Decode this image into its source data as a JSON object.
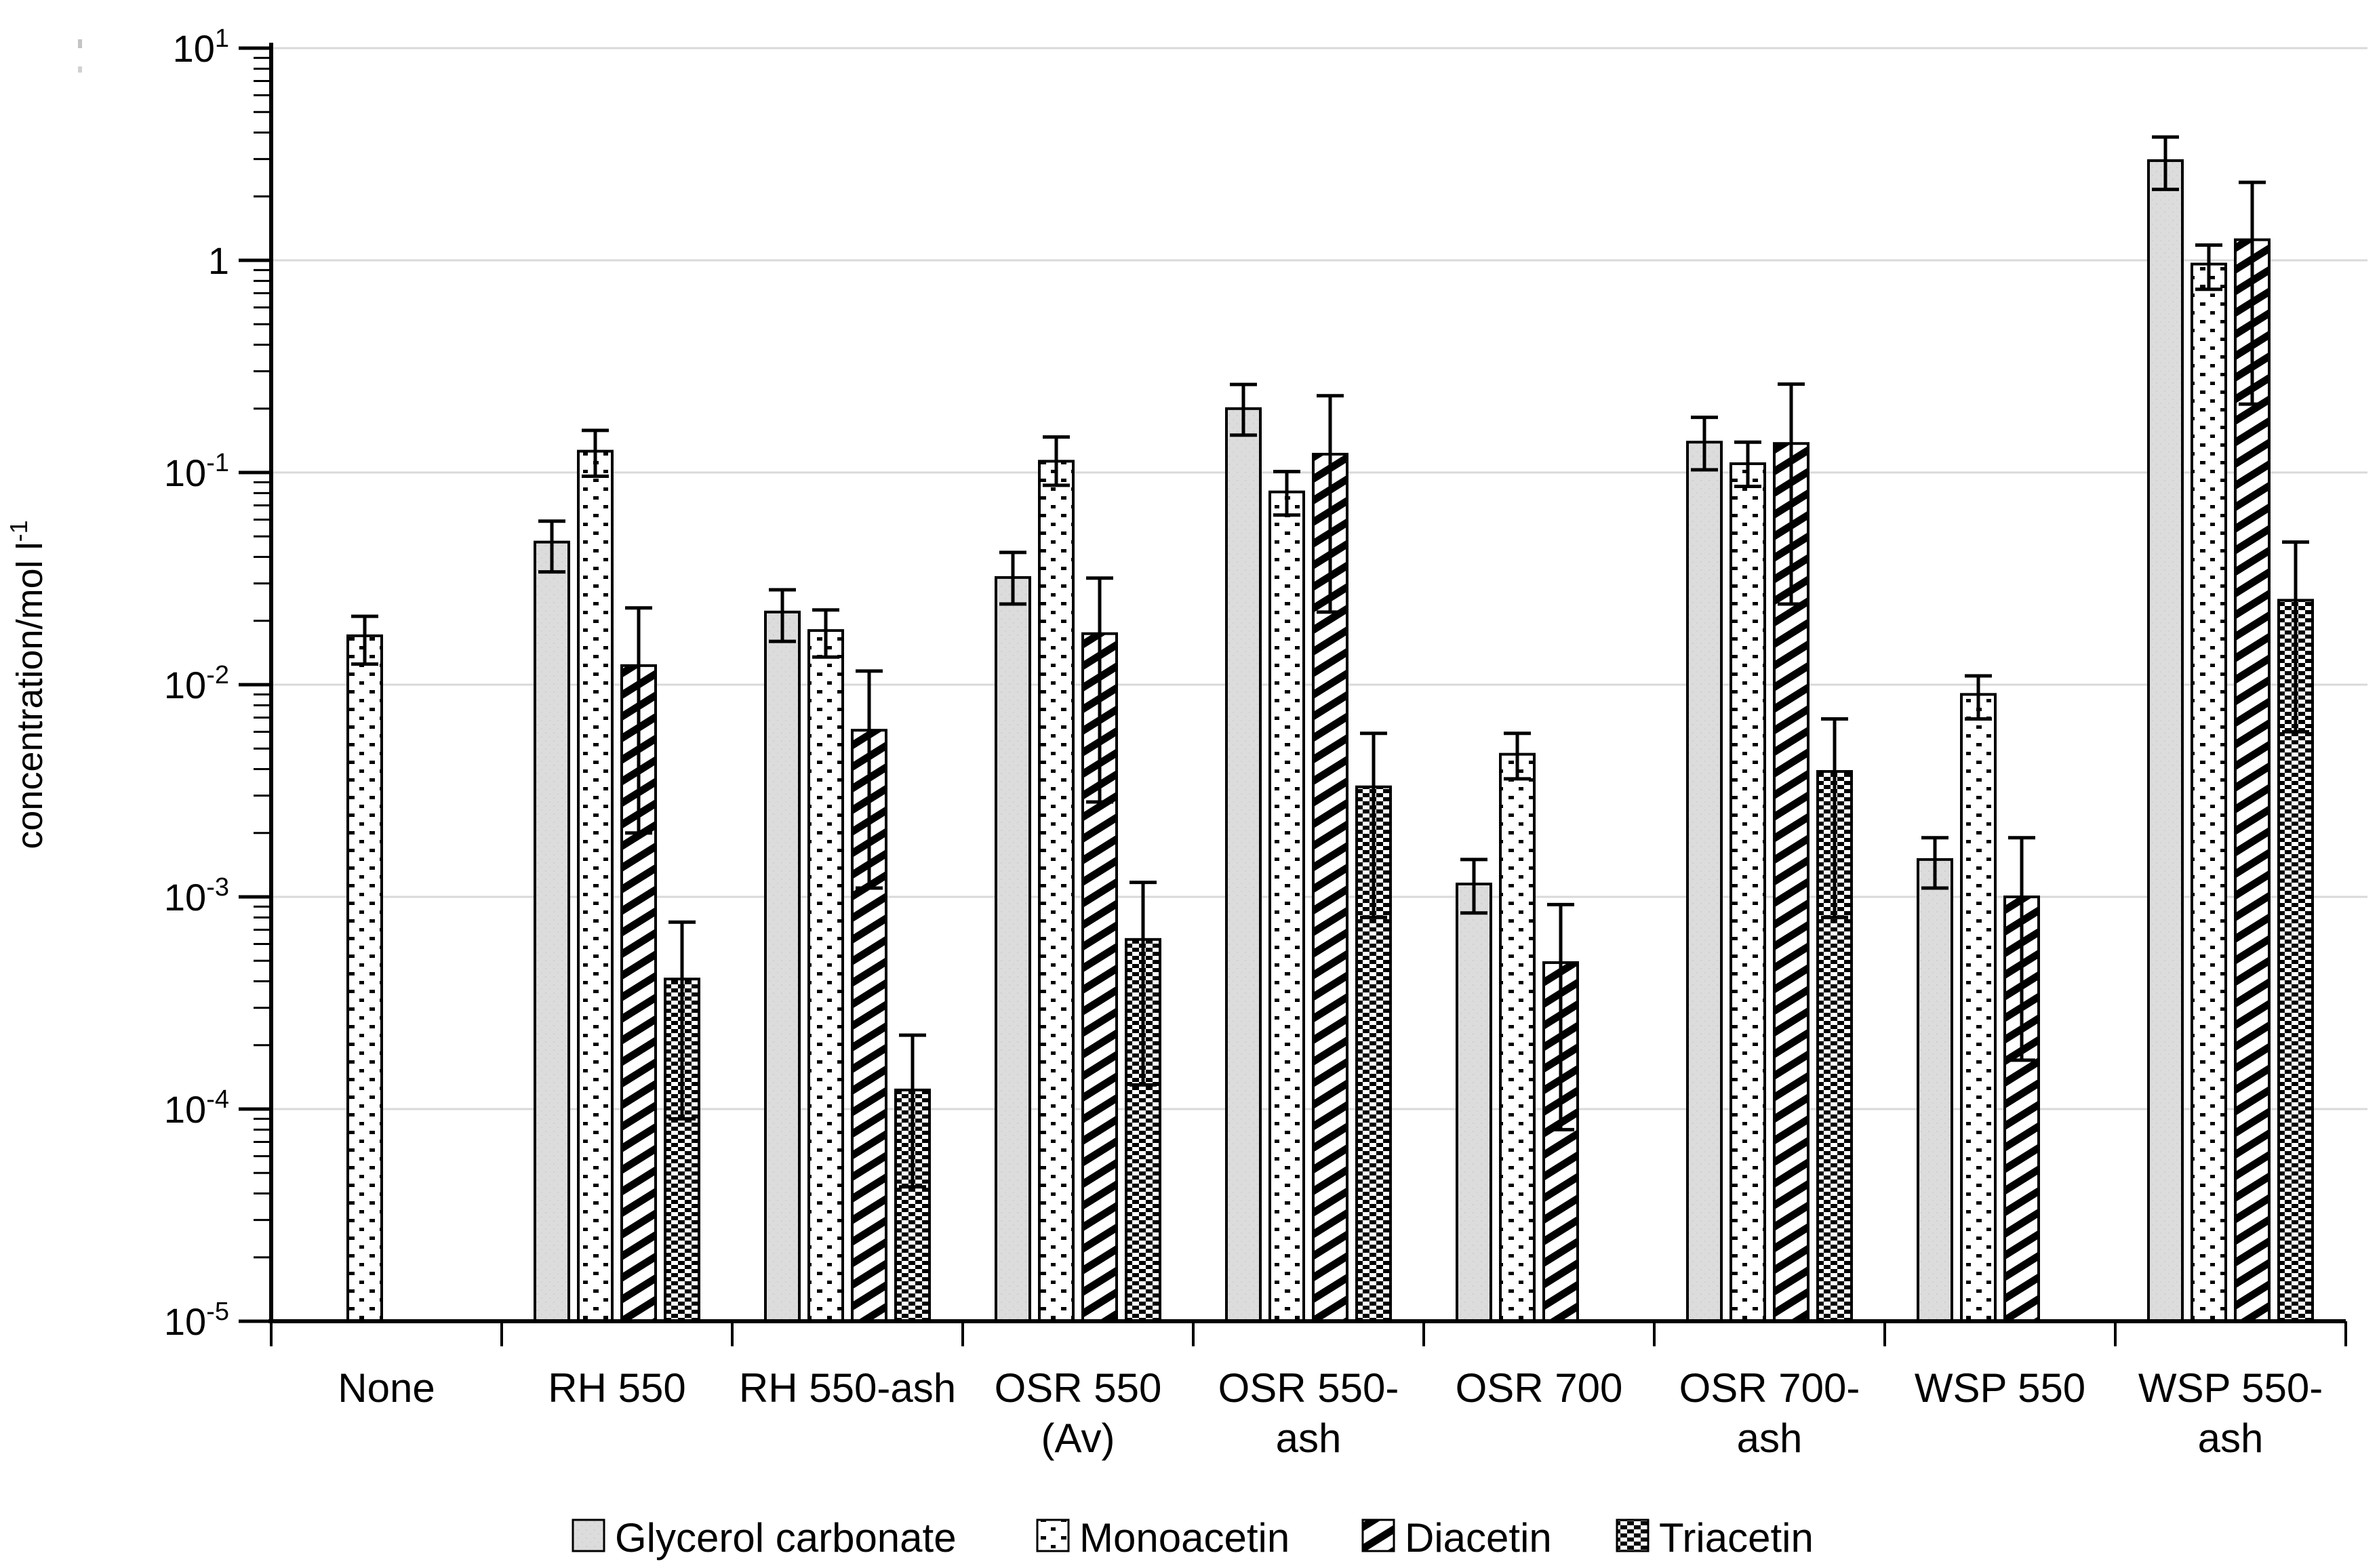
{
  "figure": {
    "ylabel_main": "concentration/mol l",
    "ylabel_sup": "-1"
  },
  "colors": {
    "ink": "#000000",
    "grid": "#d9d9d9",
    "gray_fill": "#dcdcdc",
    "background": "#ffffff"
  },
  "chart_data": {
    "type": "bar",
    "title": "",
    "xlabel": "",
    "ylabel": "concentration/mol l^-1",
    "y_scale": "log",
    "ylim": [
      1e-05,
      10
    ],
    "grid": true,
    "legend_position": "bottom",
    "y_ticks": [
      {
        "exp": 1,
        "base": "10",
        "sup": "1"
      },
      {
        "exp": 0,
        "base": "1",
        "sup": ""
      },
      {
        "exp": -1,
        "base": "10",
        "sup": "-1"
      },
      {
        "exp": -2,
        "base": "10",
        "sup": "-2"
      },
      {
        "exp": -3,
        "base": "10",
        "sup": "-3"
      },
      {
        "exp": -4,
        "base": "10",
        "sup": "-4"
      },
      {
        "exp": -5,
        "base": "10",
        "sup": "-5"
      }
    ],
    "categories": [
      "None",
      "RH 550",
      "RH 550-ash",
      "OSR 550 (Av)",
      "OSR 550-ash",
      "OSR 700",
      "OSR 700-ash",
      "WSP 550",
      "WSP 550-ash"
    ],
    "category_label_lines": [
      [
        "None"
      ],
      [
        "RH 550"
      ],
      [
        "RH 550-ash"
      ],
      [
        "OSR 550",
        "(Av)"
      ],
      [
        "OSR 550-",
        "ash"
      ],
      [
        "OSR 700"
      ],
      [
        "OSR 700-",
        "ash"
      ],
      [
        "WSP 550"
      ],
      [
        "WSP 550-",
        "ash"
      ]
    ],
    "series": [
      {
        "name": "Glycerol carbonate",
        "pattern": "gray-solid",
        "values": [
          null,
          0.047,
          0.022,
          0.032,
          0.2,
          0.00115,
          0.139,
          0.0015,
          2.95
        ],
        "err_up": [
          null,
          0.012,
          0.006,
          0.01,
          0.06,
          0.00035,
          0.043,
          0.0004,
          0.86
        ],
        "err_dn": [
          null,
          0.013,
          0.006,
          0.008,
          0.05,
          0.00031,
          0.036,
          0.0004,
          0.79
        ]
      },
      {
        "name": "Monoacetin",
        "pattern": "dots",
        "values": [
          0.017,
          0.126,
          0.018,
          0.113,
          0.081,
          0.0047,
          0.11,
          0.009,
          0.96
        ],
        "err_up": [
          0.004,
          0.032,
          0.0045,
          0.034,
          0.02,
          0.0012,
          0.029,
          0.002,
          0.22
        ],
        "err_dn": [
          0.0045,
          0.03,
          0.0045,
          0.026,
          0.018,
          0.0011,
          0.024,
          0.0021,
          0.23
        ]
      },
      {
        "name": "Diacetin",
        "pattern": "diagonal-stripes",
        "values": [
          null,
          0.0123,
          0.0061,
          0.0174,
          0.122,
          0.00049,
          0.137,
          0.001,
          1.25
        ],
        "err_up": [
          null,
          0.0107,
          0.0055,
          0.0144,
          0.108,
          0.00043,
          0.124,
          0.0009,
          1.08
        ],
        "err_dn": [
          null,
          0.0103,
          0.005,
          0.0146,
          0.1,
          0.00041,
          0.113,
          0.00083,
          1.04
        ]
      },
      {
        "name": "Triacetin",
        "pattern": "checkerboard",
        "values": [
          null,
          0.00041,
          0.000123,
          0.00063,
          0.0033,
          null,
          0.0039,
          null,
          0.025
        ],
        "err_up": [
          null,
          0.00035,
          0.0001,
          0.00054,
          0.0026,
          null,
          0.003,
          null,
          0.022
        ],
        "err_dn": [
          null,
          0.00032,
          8e-05,
          0.0005,
          0.0025,
          null,
          0.0031,
          null,
          0.019
        ]
      }
    ]
  }
}
